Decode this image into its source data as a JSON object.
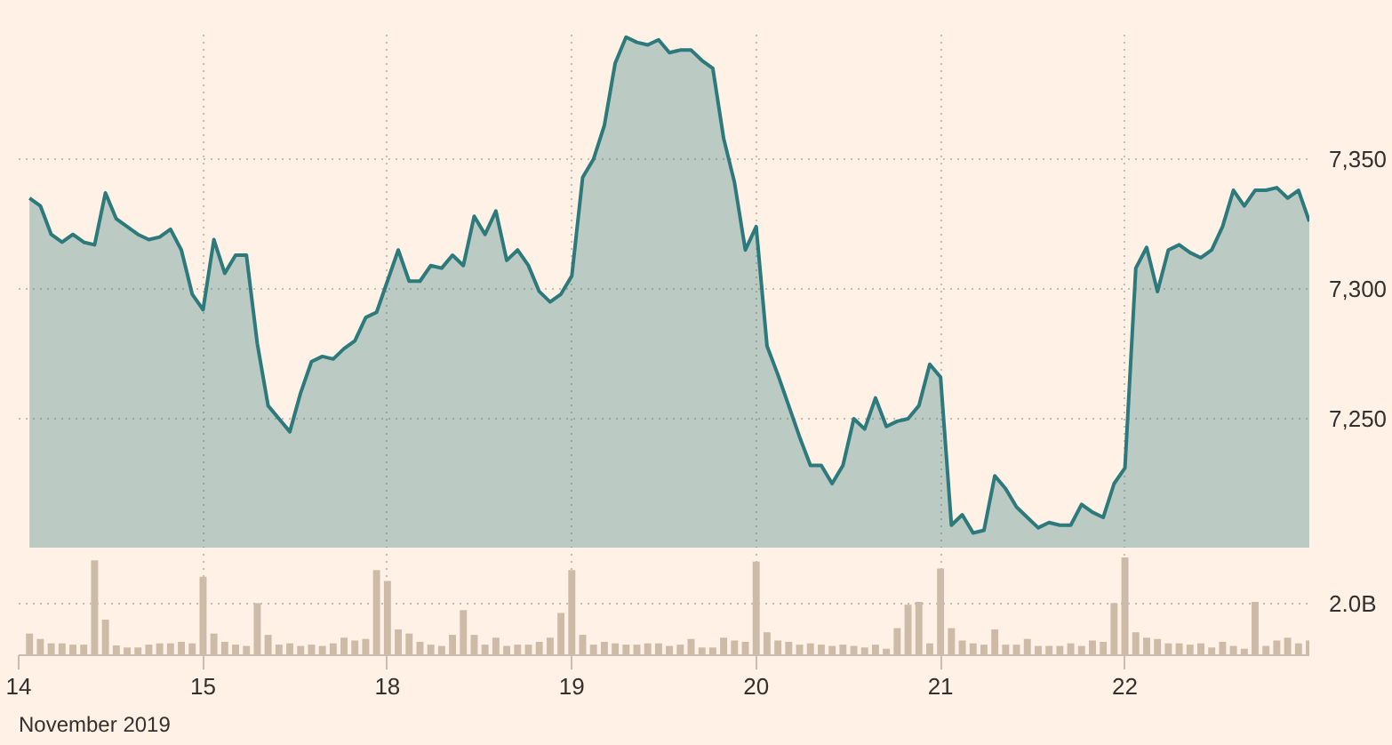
{
  "chart_data": [
    {
      "type": "area",
      "tick_labels": "y",
      "grid": true,
      "ylim": [
        7200,
        7400
      ],
      "yticks": [
        {
          "value": 7250,
          "label": "7,250"
        },
        {
          "value": 7300,
          "label": "7,300"
        },
        {
          "value": 7350,
          "label": "7,350"
        }
      ],
      "categories": [
        "14",
        null,
        null,
        null,
        null,
        null,
        null,
        null,
        null,
        null,
        null,
        null,
        null,
        null,
        null,
        null,
        null,
        "15",
        null,
        null,
        null,
        null,
        null,
        null,
        null,
        null,
        null,
        null,
        null,
        null,
        null,
        null,
        null,
        null,
        "18",
        null,
        null,
        null,
        null,
        null,
        null,
        null,
        null,
        null,
        null,
        null,
        null,
        null,
        null,
        null,
        null,
        "19",
        null,
        null,
        null,
        null,
        null,
        null,
        null,
        null,
        null,
        null,
        null,
        null,
        null,
        null,
        null,
        null,
        "20",
        null,
        null,
        null,
        null,
        null,
        null,
        null,
        null,
        null,
        null,
        null,
        null,
        null,
        null,
        null,
        null,
        "21",
        null,
        null,
        null,
        null,
        null,
        null,
        null,
        null,
        null,
        null,
        null,
        null,
        null,
        null,
        null,
        null,
        "22",
        null,
        null,
        null,
        null,
        null,
        null,
        null,
        null,
        null,
        null,
        null,
        null,
        null,
        null,
        null,
        null,
        null
      ],
      "series": [
        {
          "color": "#2c7a7b",
          "values": [
            null,
            7335,
            7332,
            7321,
            7318,
            7321,
            7318,
            7317,
            7337,
            7327,
            7324,
            7321,
            7319,
            7320,
            7323,
            7315,
            7298,
            7292,
            7319,
            7306,
            7313,
            7313,
            7279,
            7255,
            7250,
            7245,
            7260,
            7272,
            7274,
            7273,
            7277,
            7280,
            7289,
            7291,
            7303,
            7315,
            7303,
            7303,
            7309,
            7308,
            7313,
            7309,
            7328,
            7321,
            7330,
            7311,
            7315,
            7309,
            7299,
            7295,
            7298,
            7305,
            7343,
            7350,
            7363,
            7387,
            7397,
            7395,
            7394,
            7396,
            7391,
            7392,
            7392,
            7388,
            7385,
            7358,
            7341,
            7315,
            7324,
            7278,
            7267,
            7255,
            7243,
            7232,
            7232,
            7225,
            7232,
            7250,
            7246,
            7258,
            7247,
            7249,
            7250,
            7255,
            7271,
            7266,
            7209,
            7213,
            7206,
            7207,
            7228,
            7223,
            7216,
            7212,
            7208,
            7210,
            7209,
            7209,
            7217,
            7214,
            7212,
            7225,
            7231,
            7308,
            7316,
            7299,
            7315,
            7317,
            7314,
            7312,
            7315,
            7324,
            7338,
            7332,
            7338,
            7338,
            7339,
            7335,
            7338,
            7326
          ]
        }
      ]
    },
    {
      "type": "bar",
      "grid": true,
      "color": "#cdbba7",
      "xlabel": "November 2019",
      "ylim": [
        0,
        4
      ],
      "yticks": [
        {
          "value": 0,
          "label": null
        },
        {
          "value": 2.0,
          "label": "2.0B"
        }
      ],
      "categories": [
        "14",
        null,
        null,
        null,
        null,
        null,
        null,
        null,
        null,
        null,
        null,
        null,
        null,
        null,
        null,
        null,
        null,
        "15",
        null,
        null,
        null,
        null,
        null,
        null,
        null,
        null,
        null,
        null,
        null,
        null,
        null,
        null,
        null,
        null,
        "18",
        null,
        null,
        null,
        null,
        null,
        null,
        null,
        null,
        null,
        null,
        null,
        null,
        null,
        null,
        null,
        null,
        "19",
        null,
        null,
        null,
        null,
        null,
        null,
        null,
        null,
        null,
        null,
        null,
        null,
        null,
        null,
        null,
        null,
        "20",
        null,
        null,
        null,
        null,
        null,
        null,
        null,
        null,
        null,
        null,
        null,
        null,
        null,
        null,
        null,
        null,
        "21",
        null,
        null,
        null,
        null,
        null,
        null,
        null,
        null,
        null,
        null,
        null,
        null,
        null,
        null,
        null,
        null,
        "22",
        null,
        null,
        null,
        null,
        null,
        null,
        null,
        null,
        null,
        null,
        null,
        null,
        null,
        null,
        null,
        null,
        null
      ],
      "values": [
        null,
        0.84,
        0.63,
        0.46,
        0.46,
        0.41,
        0.41,
        3.68,
        1.38,
        0.38,
        0.3,
        0.3,
        0.41,
        0.46,
        0.46,
        0.52,
        0.46,
        3.04,
        0.84,
        0.52,
        0.41,
        0.36,
        2.02,
        0.79,
        0.41,
        0.46,
        0.36,
        0.41,
        0.36,
        0.46,
        0.68,
        0.57,
        0.63,
        3.3,
        2.88,
        1.0,
        0.84,
        0.52,
        0.41,
        0.36,
        0.79,
        1.75,
        0.79,
        0.41,
        0.68,
        0.36,
        0.41,
        0.41,
        0.52,
        0.68,
        1.64,
        3.3,
        0.79,
        0.41,
        0.52,
        0.46,
        0.41,
        0.41,
        0.46,
        0.46,
        0.36,
        0.41,
        0.63,
        0.3,
        0.3,
        0.68,
        0.57,
        0.52,
        3.63,
        0.89,
        0.57,
        0.52,
        0.41,
        0.46,
        0.41,
        0.36,
        0.41,
        0.36,
        0.3,
        0.41,
        0.25,
        1.05,
        1.96,
        2.07,
        0.46,
        3.36,
        1.05,
        0.57,
        0.46,
        0.41,
        1.0,
        0.41,
        0.41,
        0.63,
        0.36,
        0.36,
        0.36,
        0.46,
        0.36,
        0.57,
        0.52,
        2.02,
        3.79,
        0.89,
        0.68,
        0.63,
        0.46,
        0.46,
        0.41,
        0.46,
        0.3,
        0.52,
        0.36,
        0.25,
        2.07,
        0.36,
        0.57,
        0.68,
        0.46,
        0.57
      ]
    }
  ]
}
